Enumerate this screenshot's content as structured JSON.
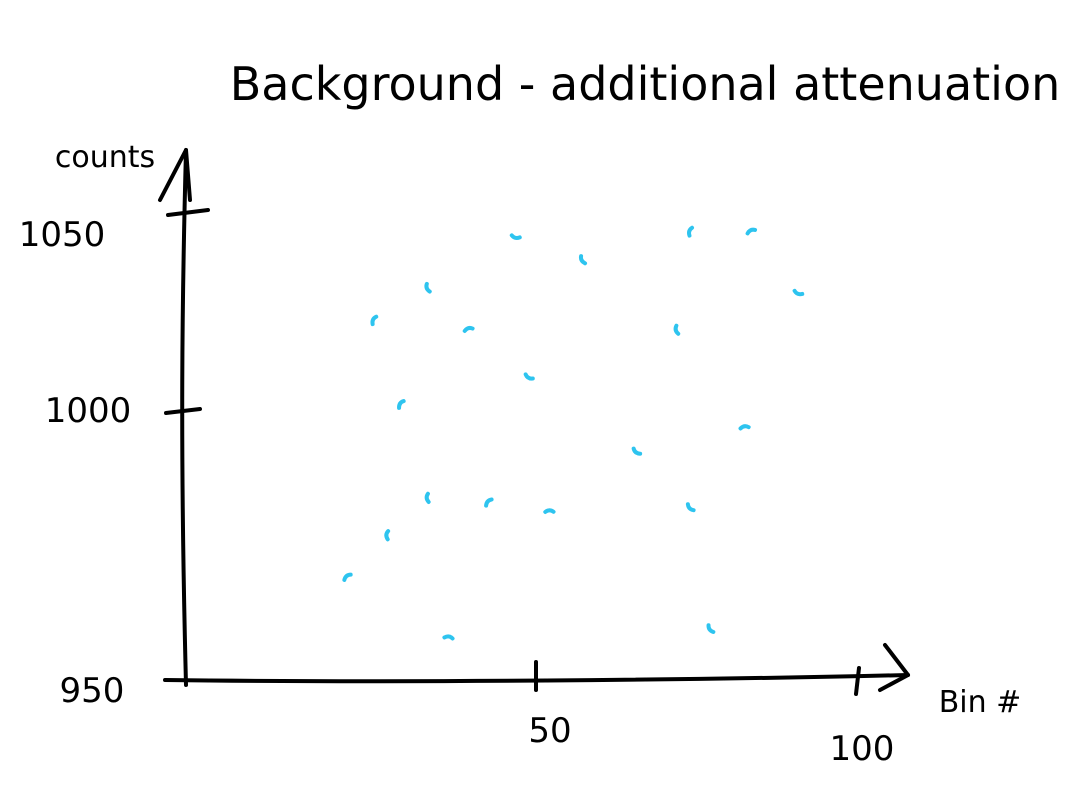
{
  "chart_data": {
    "type": "scatter",
    "title": "Background - additional attenuation",
    "xlabel": "Bin #",
    "ylabel": "counts",
    "xlim": [
      0,
      100
    ],
    "ylim": [
      950,
      1050
    ],
    "x_ticks": [
      "50",
      "100"
    ],
    "y_ticks": [
      "950",
      "1000",
      "1050"
    ],
    "grid": false,
    "colors": {
      "points": "#2ec4ef",
      "ink": "#000000"
    },
    "series": [
      {
        "x": [
          49,
          59,
          75,
          84,
          91,
          36,
          28,
          42,
          51,
          73,
          32,
          83,
          67,
          36,
          45,
          54,
          75,
          30,
          24,
          39,
          78
        ],
        "y": [
          1045,
          1040,
          1046,
          1046,
          1033,
          1034,
          1027,
          1025,
          1015,
          1025,
          1009,
          1004,
          999,
          989,
          988,
          986,
          987,
          981,
          972,
          959,
          961
        ]
      }
    ]
  }
}
